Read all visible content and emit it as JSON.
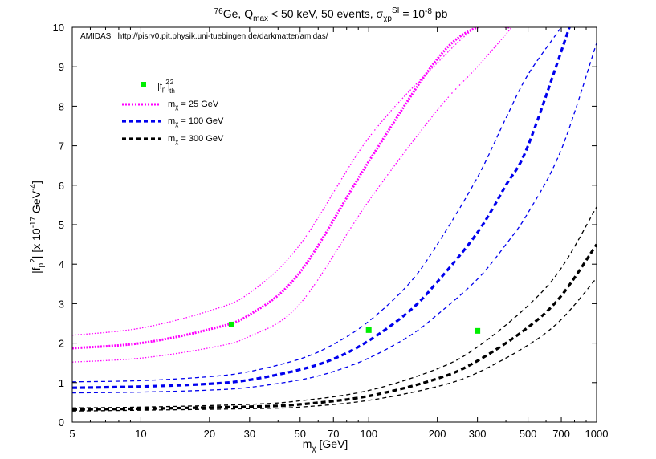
{
  "chart_data": {
    "type": "line",
    "title": {
      "main": "Ge, Q",
      "isotope": "76",
      "q_sub": "max",
      "mid": " < 50 keV, 50 events, σ",
      "sigma_sub": "χp",
      "sigma_sup": "SI",
      "tail": " = 10",
      "exp": "-8",
      "unit": " pb"
    },
    "xlabel": {
      "base": "m",
      "sub": "χ",
      "rest": " [GeV]"
    },
    "ylabel": {
      "base": "|f",
      "sub": "p",
      "sup": "2",
      "rest": "| [x 10",
      "exp": "-17",
      "unit": " GeV",
      "unit_exp": "-4",
      "close": "]"
    },
    "x_scale": "log",
    "xlim": [
      5,
      1000
    ],
    "ylim": [
      0,
      10
    ],
    "x_ticks": [
      5,
      10,
      20,
      30,
      50,
      70,
      100,
      200,
      300,
      500,
      700,
      1000
    ],
    "x_tick_labels": [
      "5",
      "10",
      "20",
      "30",
      "50",
      "70",
      "100",
      "200",
      "300",
      "500",
      "700",
      "1000"
    ],
    "y_ticks": [
      0,
      1,
      2,
      3,
      4,
      5,
      6,
      7,
      8,
      9,
      10
    ],
    "y_tick_labels": [
      "0",
      "1",
      "2",
      "3",
      "4",
      "5",
      "6",
      "7",
      "8",
      "9",
      "10"
    ],
    "annotation": "AMIDAS   http://pisrv0.pit.physik.uni-tuebingen.de/darkmatter/amidas/",
    "legend_position": "top-left",
    "legend": [
      {
        "base": "|f",
        "sub": "p",
        "sup": "2",
        "tail": "th",
        "color": "#00ee00",
        "kind": "square"
      },
      {
        "base": "m",
        "sub": "χ",
        "rest": " = 25 GeV",
        "color": "#ff00ff",
        "kind": "dotted"
      },
      {
        "base": "m",
        "sub": "χ",
        "rest": " = 100 GeV",
        "color": "#0000ee",
        "kind": "dashed"
      },
      {
        "base": "m",
        "sub": "χ",
        "rest": " = 300 GeV",
        "color": "#000000",
        "kind": "dashed"
      }
    ],
    "theory_points": {
      "x": [
        25,
        100,
        300
      ],
      "y": [
        2.47,
        2.33,
        2.31
      ],
      "color": "#00ee00"
    },
    "series": [
      {
        "name": "m_χ = 25 GeV",
        "color": "#ff00ff",
        "style": "dotted",
        "band": "upper",
        "x": [
          5,
          10,
          20,
          30,
          50,
          100,
          200,
          300,
          400
        ],
        "y": [
          2.2,
          2.38,
          2.82,
          3.27,
          4.5,
          7.2,
          9.1,
          10.0,
          10.0
        ]
      },
      {
        "name": "m_χ = 25 GeV",
        "color": "#ff00ff",
        "style": "dotted",
        "band": "central",
        "x": [
          5,
          10,
          20,
          30,
          50,
          100,
          200,
          300,
          415
        ],
        "y": [
          1.87,
          2.0,
          2.35,
          2.72,
          3.8,
          6.6,
          9.2,
          10.0,
          10.0
        ]
      },
      {
        "name": "m_χ = 25 GeV",
        "color": "#ff00ff",
        "style": "dotted",
        "band": "lower",
        "x": [
          5,
          10,
          20,
          30,
          50,
          100,
          200,
          300,
          425
        ],
        "y": [
          1.52,
          1.62,
          1.88,
          2.17,
          3.0,
          5.6,
          7.9,
          9.0,
          10.0
        ]
      },
      {
        "name": "m_χ = 100 GeV",
        "color": "#0000ee",
        "style": "dashed",
        "band": "upper",
        "x": [
          5,
          10,
          20,
          30,
          50,
          70,
          100,
          150,
          200,
          300,
          400,
          500,
          700
        ],
        "y": [
          1.02,
          1.05,
          1.15,
          1.28,
          1.6,
          1.97,
          2.55,
          3.5,
          4.5,
          6.2,
          7.7,
          8.8,
          10.0
        ]
      },
      {
        "name": "m_χ = 100 GeV",
        "color": "#0000ee",
        "style": "dashed",
        "band": "central",
        "x": [
          5,
          10,
          20,
          30,
          50,
          70,
          100,
          150,
          200,
          300,
          400,
          500,
          760
        ],
        "y": [
          0.87,
          0.9,
          0.97,
          1.07,
          1.33,
          1.6,
          2.06,
          2.8,
          3.55,
          4.8,
          6.0,
          7.0,
          10.0
        ]
      },
      {
        "name": "m_χ = 100 GeV",
        "color": "#0000ee",
        "style": "dashed",
        "band": "lower",
        "x": [
          5,
          10,
          20,
          30,
          50,
          70,
          100,
          150,
          200,
          300,
          400,
          500,
          700,
          1000
        ],
        "y": [
          0.74,
          0.76,
          0.81,
          0.88,
          1.07,
          1.28,
          1.62,
          2.17,
          2.72,
          3.62,
          4.5,
          5.3,
          6.9,
          9.6
        ]
      },
      {
        "name": "m_χ = 300 GeV",
        "color": "#000000",
        "style": "dashed",
        "band": "upper",
        "x": [
          5,
          10,
          30,
          50,
          100,
          200,
          300,
          500,
          700,
          1000
        ],
        "y": [
          0.36,
          0.38,
          0.45,
          0.54,
          0.8,
          1.35,
          1.9,
          2.95,
          3.9,
          5.45
        ]
      },
      {
        "name": "m_χ = 300 GeV",
        "color": "#000000",
        "style": "dashed",
        "band": "central",
        "x": [
          5,
          10,
          30,
          50,
          100,
          200,
          300,
          500,
          700,
          1000
        ],
        "y": [
          0.32,
          0.34,
          0.39,
          0.45,
          0.66,
          1.1,
          1.55,
          2.4,
          3.2,
          4.5
        ]
      },
      {
        "name": "m_χ = 300 GeV",
        "color": "#000000",
        "style": "dashed",
        "band": "lower",
        "x": [
          5,
          10,
          30,
          50,
          100,
          200,
          300,
          500,
          700,
          1000
        ],
        "y": [
          0.28,
          0.3,
          0.34,
          0.38,
          0.55,
          0.9,
          1.25,
          1.95,
          2.6,
          3.65
        ]
      }
    ]
  }
}
